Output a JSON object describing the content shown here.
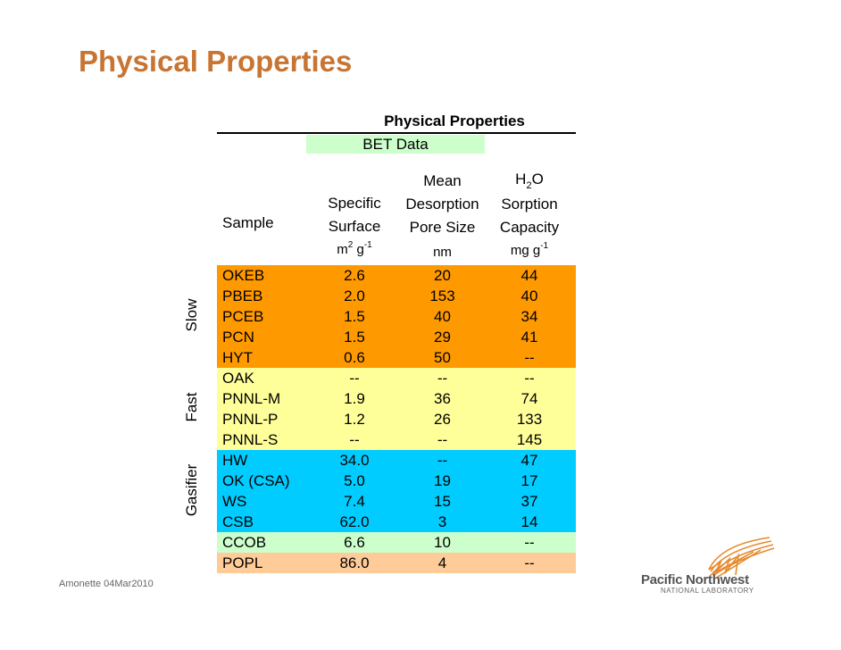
{
  "slide_title": "Physical Properties",
  "table": {
    "title": "Physical Properties",
    "bet_label": "BET Data",
    "headers": {
      "sample": "Sample",
      "surface_line1": "Specific",
      "surface_line2": "Surface",
      "surface_unit_a": "m",
      "surface_unit_a_sup": "2",
      "surface_unit_b": " g",
      "surface_unit_b_sup": "-1",
      "pore_line1": "Mean",
      "pore_line2": "Desorption",
      "pore_line3": "Pore Size",
      "pore_unit": "nm",
      "h2o_a": "H",
      "h2o_sub": "2",
      "h2o_b": "O",
      "h2o_line2": "Sorption",
      "h2o_line3": "Capacity",
      "h2o_unit_a": "mg g",
      "h2o_unit_sup": "-1"
    },
    "groups": {
      "slow": "Slow",
      "fast": "Fast",
      "gasifier": "Gasifier"
    },
    "rows": [
      {
        "sample": "OKEB",
        "surface": "2.6",
        "pore": "20",
        "h2o": "44",
        "color": "#ff9900"
      },
      {
        "sample": "PBEB",
        "surface": "2.0",
        "pore": "153",
        "h2o": "40",
        "color": "#ff9900"
      },
      {
        "sample": "PCEB",
        "surface": "1.5",
        "pore": "40",
        "h2o": "34",
        "color": "#ff9900"
      },
      {
        "sample": "PCN",
        "surface": "1.5",
        "pore": "29",
        "h2o": "41",
        "color": "#ff9900"
      },
      {
        "sample": "HYT",
        "surface": "0.6",
        "pore": "50",
        "h2o": "--",
        "color": "#ff9900"
      },
      {
        "sample": "OAK",
        "surface": "--",
        "pore": "--",
        "h2o": "--",
        "color": "#ffff99"
      },
      {
        "sample": "PNNL-M",
        "surface": "1.9",
        "pore": "36",
        "h2o": "74",
        "color": "#ffff99"
      },
      {
        "sample": "PNNL-P",
        "surface": "1.2",
        "pore": "26",
        "h2o": "133",
        "color": "#ffff99"
      },
      {
        "sample": "PNNL-S",
        "surface": "--",
        "pore": "--",
        "h2o": "145",
        "color": "#ffff99"
      },
      {
        "sample": "HW",
        "surface": "34.0",
        "pore": "--",
        "h2o": "47",
        "color": "#00ccff"
      },
      {
        "sample": "OK (CSA)",
        "surface": "5.0",
        "pore": "19",
        "h2o": "17",
        "color": "#00ccff"
      },
      {
        "sample": "WS",
        "surface": "7.4",
        "pore": "15",
        "h2o": "37",
        "color": "#00ccff"
      },
      {
        "sample": "CSB",
        "surface": "62.0",
        "pore": "3",
        "h2o": "14",
        "color": "#00ccff"
      },
      {
        "sample": "CCOB",
        "surface": "6.6",
        "pore": "10",
        "h2o": "--",
        "color": "#ccffcc"
      },
      {
        "sample": "POPL",
        "surface": "86.0",
        "pore": "4",
        "h2o": "--",
        "color": "#ffcc99"
      }
    ]
  },
  "footer": "Amonette 04Mar2010",
  "logo": {
    "name": "Pacific Northwest",
    "sub": "NATIONAL LABORATORY",
    "accent": "#e68a2e"
  }
}
